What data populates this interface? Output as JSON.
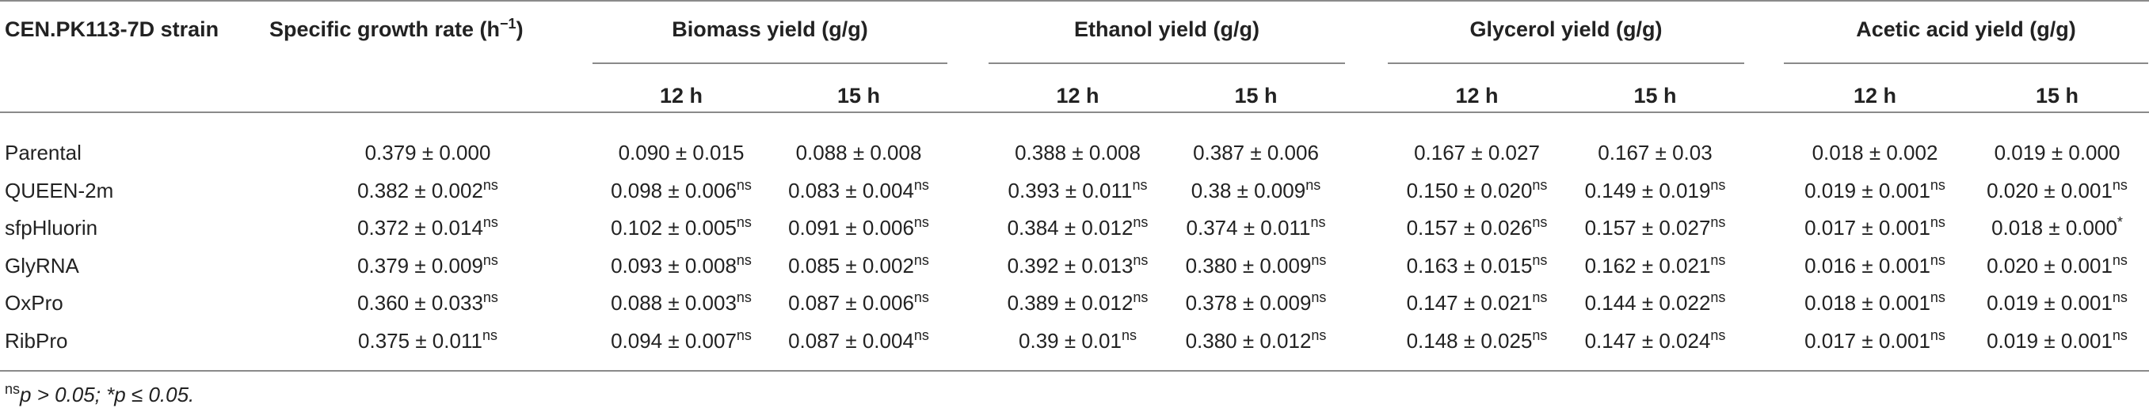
{
  "table": {
    "headers": {
      "strain": "CEN.PK113-7D strain",
      "growth_rate": "Specific growth rate (h",
      "growth_rate_sup": "−1",
      "growth_rate_close": ")",
      "biomass": "Biomass yield (g/g)",
      "ethanol": "Ethanol yield (g/g)",
      "glycerol": "Glycerol yield (g/g)",
      "acetic": "Acetic acid yield (g/g)",
      "t12": "12 h",
      "t15": "15 h"
    },
    "rows": [
      {
        "strain": "Parental",
        "cells": [
          [
            "0.379 ± 0.000",
            ""
          ],
          [
            "0.090 ± 0.015",
            ""
          ],
          [
            "0.088 ± 0.008",
            ""
          ],
          [
            "0.388 ± 0.008",
            ""
          ],
          [
            "0.387 ± 0.006",
            ""
          ],
          [
            "0.167 ± 0.027",
            ""
          ],
          [
            "0.167 ± 0.03",
            ""
          ],
          [
            "0.018 ± 0.002",
            ""
          ],
          [
            "0.019 ± 0.000",
            ""
          ]
        ]
      },
      {
        "strain": "QUEEN-2m",
        "cells": [
          [
            "0.382 ± 0.002",
            "ns"
          ],
          [
            "0.098 ± 0.006",
            "ns"
          ],
          [
            "0.083 ± 0.004",
            "ns"
          ],
          [
            "0.393 ± 0.011",
            "ns"
          ],
          [
            "0.38 ± 0.009",
            "ns"
          ],
          [
            "0.150 ± 0.020",
            "ns"
          ],
          [
            "0.149 ± 0.019",
            "ns"
          ],
          [
            "0.019 ± 0.001",
            "ns"
          ],
          [
            "0.020 ± 0.001",
            "ns"
          ]
        ]
      },
      {
        "strain": "sfpHluorin",
        "cells": [
          [
            "0.372 ± 0.014",
            "ns"
          ],
          [
            "0.102 ± 0.005",
            "ns"
          ],
          [
            "0.091 ± 0.006",
            "ns"
          ],
          [
            "0.384 ± 0.012",
            "ns"
          ],
          [
            "0.374 ± 0.011",
            "ns"
          ],
          [
            "0.157 ± 0.026",
            "ns"
          ],
          [
            "0.157 ± 0.027",
            "ns"
          ],
          [
            "0.017 ± 0.001",
            "ns"
          ],
          [
            "0.018 ± 0.000",
            "*"
          ]
        ]
      },
      {
        "strain": "GlyRNA",
        "cells": [
          [
            "0.379 ± 0.009",
            "ns"
          ],
          [
            "0.093 ± 0.008",
            "ns"
          ],
          [
            "0.085 ± 0.002",
            "ns"
          ],
          [
            "0.392 ± 0.013",
            "ns"
          ],
          [
            "0.380 ± 0.009",
            "ns"
          ],
          [
            "0.163 ± 0.015",
            "ns"
          ],
          [
            "0.162 ± 0.021",
            "ns"
          ],
          [
            "0.016 ± 0.001",
            "ns"
          ],
          [
            "0.020 ± 0.001",
            "ns"
          ]
        ]
      },
      {
        "strain": "OxPro",
        "cells": [
          [
            "0.360 ± 0.033",
            "ns"
          ],
          [
            "0.088 ± 0.003",
            "ns"
          ],
          [
            "0.087 ± 0.006",
            "ns"
          ],
          [
            "0.389 ± 0.012",
            "ns"
          ],
          [
            "0.378 ± 0.009",
            "ns"
          ],
          [
            "0.147 ± 0.021",
            "ns"
          ],
          [
            "0.144 ± 0.022",
            "ns"
          ],
          [
            "0.018 ± 0.001",
            "ns"
          ],
          [
            "0.019 ± 0.001",
            "ns"
          ]
        ]
      },
      {
        "strain": "RibPro",
        "cells": [
          [
            "0.375 ± 0.011",
            "ns"
          ],
          [
            "0.094 ± 0.007",
            "ns"
          ],
          [
            "0.087 ± 0.004",
            "ns"
          ],
          [
            "0.39 ± 0.01",
            "ns"
          ],
          [
            "0.380 ± 0.012",
            "ns"
          ],
          [
            "0.148 ± 0.025",
            "ns"
          ],
          [
            "0.147 ± 0.024",
            "ns"
          ],
          [
            "0.017 ± 0.001",
            "ns"
          ],
          [
            "0.019 ± 0.001",
            "ns"
          ]
        ]
      }
    ]
  },
  "footnote": {
    "sup": "ns",
    "text": "p > 0.05; *p ≤ 0.05."
  }
}
